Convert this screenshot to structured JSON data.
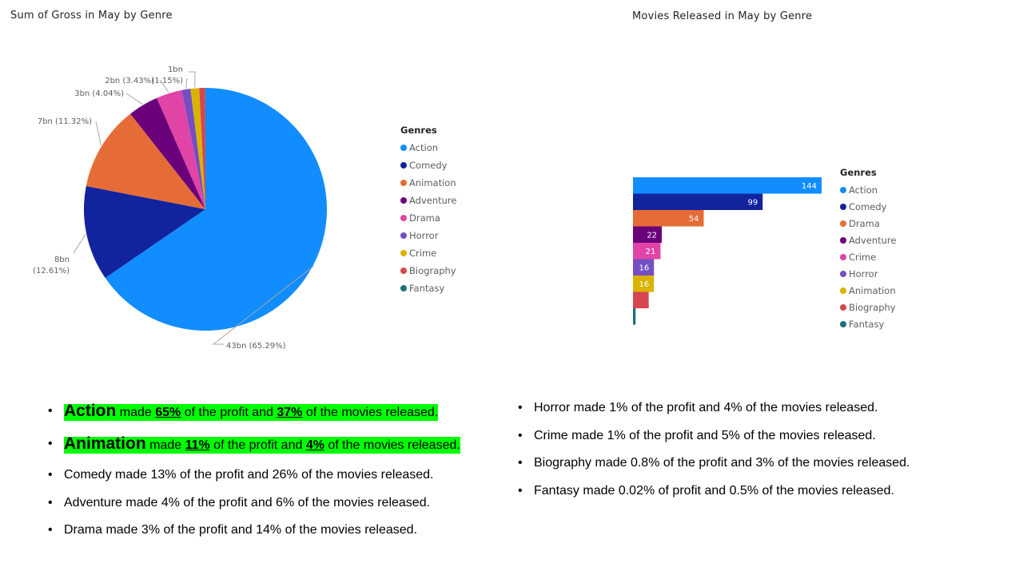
{
  "pie_chart": {
    "title": "Sum of Gross in May by Genre",
    "legend_title": "Genres",
    "legend": [
      {
        "label": "Action",
        "color": "#118DFF"
      },
      {
        "label": "Comedy",
        "color": "#12239E"
      },
      {
        "label": "Animation",
        "color": "#E66C37"
      },
      {
        "label": "Adventure",
        "color": "#6B007B"
      },
      {
        "label": "Drama",
        "color": "#E044A7"
      },
      {
        "label": "Horror",
        "color": "#744EC2"
      },
      {
        "label": "Crime",
        "color": "#D9B300"
      },
      {
        "label": "Biography",
        "color": "#D64550"
      },
      {
        "label": "Fantasy",
        "color": "#197278"
      }
    ],
    "slice_labels": {
      "action": "43bn (65.29%)",
      "comedy_value": "8bn",
      "comedy_pct": "(12.61%)",
      "animation": "7bn (11.32%)",
      "adventure": "3bn (4.04%)",
      "drama": "2bn (3.43%)",
      "horror": "(1.15%)",
      "crime": "1bn"
    }
  },
  "bar_chart": {
    "title": "Movies Released in May by Genre",
    "legend_title": "Genres",
    "legend": [
      {
        "label": "Action",
        "color": "#118DFF"
      },
      {
        "label": "Comedy",
        "color": "#12239E"
      },
      {
        "label": "Drama",
        "color": "#E66C37"
      },
      {
        "label": "Adventure",
        "color": "#6B007B"
      },
      {
        "label": "Crime",
        "color": "#E044A7"
      },
      {
        "label": "Horror",
        "color": "#744EC2"
      },
      {
        "label": "Animation",
        "color": "#D9B300"
      },
      {
        "label": "Biography",
        "color": "#D64550"
      },
      {
        "label": "Fantasy",
        "color": "#197278"
      }
    ]
  },
  "chart_data": [
    {
      "type": "pie",
      "title": "Sum of Gross in May by Genre",
      "categories": [
        "Action",
        "Comedy",
        "Animation",
        "Adventure",
        "Drama",
        "Horror",
        "Crime",
        "Biography",
        "Fantasy"
      ],
      "values": [
        65.29,
        12.61,
        11.32,
        4.04,
        3.43,
        1.15,
        1.15,
        0.79,
        0.02
      ],
      "colors": [
        "#118DFF",
        "#12239E",
        "#E66C37",
        "#6B007B",
        "#E044A7",
        "#744EC2",
        "#D9B300",
        "#D64550",
        "#197278"
      ],
      "legend_title": "Genres",
      "legend_position": "right"
    },
    {
      "type": "bar",
      "orientation": "horizontal",
      "title": "Movies Released in May by Genre",
      "categories": [
        "Action",
        "Comedy",
        "Drama",
        "Adventure",
        "Crime",
        "Horror",
        "Animation",
        "Biography",
        "Fantasy"
      ],
      "values": [
        144,
        99,
        54,
        22,
        21,
        16,
        16,
        12,
        2
      ],
      "data_labels": [
        "144",
        "99",
        "54",
        "22",
        "21",
        "16",
        "16",
        "",
        ""
      ],
      "colors": [
        "#118DFF",
        "#12239E",
        "#E66C37",
        "#6B007B",
        "#E044A7",
        "#744EC2",
        "#D9B300",
        "#D64550",
        "#197278"
      ],
      "legend_title": "Genres",
      "legend_position": "right",
      "xlim": [
        0,
        144
      ]
    }
  ],
  "notes_left": {
    "highlighted": [
      {
        "genre": "Action",
        "t1": " made ",
        "p1": "65%",
        "t2": " of the profit and ",
        "p2": "37%",
        "t3": " of the movies released."
      },
      {
        "genre": "Animation",
        "t1": " made ",
        "p1": "11%",
        "t2": " of the profit and ",
        "p2": "4%",
        "t3": " of the movies released."
      }
    ],
    "plain": [
      "Comedy made 13% of the profit and 26% of the movies released.",
      "Adventure made 4% of the profit and 6% of the movies released.",
      "Drama made 3% of the profit and 14% of the movies released."
    ]
  },
  "notes_right": [
    "Horror made 1% of the profit and 4% of the movies released.",
    "Crime made 1% of the profit and 5% of the movies released.",
    "Biography made 0.8% of the profit and 3% of the movies released.",
    "Fantasy made 0.02% of profit and 0.5% of the movies released."
  ]
}
